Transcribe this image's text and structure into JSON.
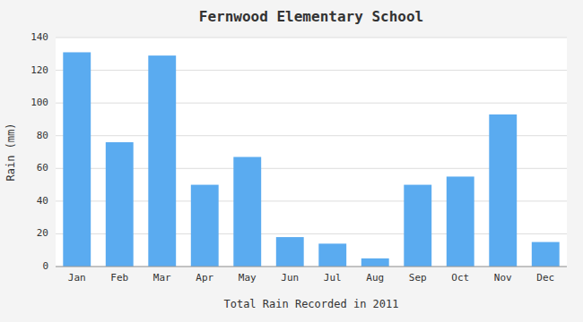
{
  "chart_data": {
    "type": "bar",
    "title": "Fernwood Elementary School",
    "xlabel": "Total Rain Recorded in 2011",
    "ylabel": "Rain (mm)",
    "categories": [
      "Jan",
      "Feb",
      "Mar",
      "Apr",
      "May",
      "Jun",
      "Jul",
      "Aug",
      "Sep",
      "Oct",
      "Nov",
      "Dec"
    ],
    "values": [
      131,
      76,
      129,
      50,
      67,
      18,
      14,
      5,
      50,
      55,
      93,
      15
    ],
    "color": "#5aabf0",
    "ylim": [
      0,
      140
    ],
    "yticks": [
      0,
      20,
      40,
      60,
      80,
      100,
      120,
      140
    ],
    "grid": true
  }
}
